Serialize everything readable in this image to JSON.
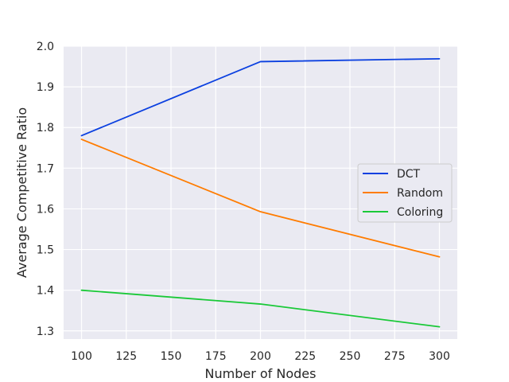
{
  "chart_data": {
    "type": "line",
    "title": "",
    "xlabel": "Number of Nodes",
    "ylabel": "Average Competitive Ratio",
    "x": [
      100,
      200,
      300
    ],
    "xlim": [
      90,
      310
    ],
    "ylim": [
      1.28,
      2.0
    ],
    "xticks": [
      100,
      125,
      150,
      175,
      200,
      225,
      250,
      275,
      300
    ],
    "xtick_labels": [
      "100",
      "125",
      "150",
      "175",
      "200",
      "225",
      "250",
      "275",
      "300"
    ],
    "yticks": [
      1.3,
      1.4,
      1.5,
      1.6,
      1.7,
      1.8,
      1.9,
      2.0
    ],
    "ytick_labels": [
      "1.3",
      "1.4",
      "1.5",
      "1.6",
      "1.7",
      "1.8",
      "1.9",
      "2.0"
    ],
    "grid": true,
    "legend_position": "center-right",
    "background": "#eaeaf2",
    "series": [
      {
        "name": "DCT",
        "color": "#0b40e0",
        "values": [
          1.78,
          1.962,
          1.969
        ]
      },
      {
        "name": "Random",
        "color": "#ff7c00",
        "values": [
          1.771,
          1.593,
          1.482
        ]
      },
      {
        "name": "Coloring",
        "color": "#1ac938",
        "values": [
          1.4,
          1.366,
          1.31
        ]
      }
    ]
  }
}
